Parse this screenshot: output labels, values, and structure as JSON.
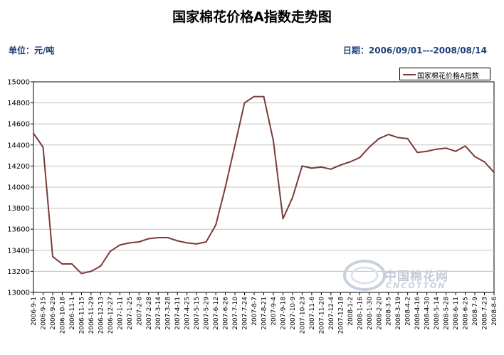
{
  "header": {
    "title": "国家棉花价格A指数走势图",
    "unit": "单位：元/吨",
    "date_range": "日期：2006/09/01---2008/08/14"
  },
  "legend": {
    "label": "国家棉花价格A指数"
  },
  "watermark": {
    "cn": "中国棉花网",
    "en": "CNCOTTON"
  },
  "colors": {
    "series": "#7b3a3a",
    "grid": "#c0c0c0",
    "axis": "#000000",
    "accent_text": "#1c3f7a"
  },
  "chart_data": {
    "type": "line",
    "ylim": [
      13000,
      15000
    ],
    "y_ticks": [
      13000,
      13200,
      13400,
      13600,
      13800,
      14000,
      14200,
      14400,
      14600,
      14800,
      15000
    ],
    "grid": true,
    "legend_position": "top-right",
    "categories": [
      "2006-9-1",
      "2006-9-15",
      "2006-9-29",
      "2006-10-18",
      "2006-11-1",
      "2006-11-15",
      "2006-11-29",
      "2006-12-13",
      "2006-12-27",
      "2007-1-11",
      "2007-1-25",
      "2007-2-8",
      "2007-2-28",
      "2007-3-14",
      "2007-3-28",
      "2007-4-11",
      "2007-4-25",
      "2007-5-15",
      "2007-5-29",
      "2007-6-12",
      "2007-6-26",
      "2007-7-10",
      "2007-7-24",
      "2007-8-7",
      "2007-8-21",
      "2007-9-4",
      "2007-9-18",
      "2007-10-9",
      "2007-10-23",
      "2007-11-6",
      "2007-11-20",
      "2007-12-4",
      "2007-12-18",
      "2008-1-2",
      "2008-1-16",
      "2008-1-30",
      "2008-2-20",
      "2008-3-5",
      "2008-3-19",
      "2008-4-2",
      "2008-4-16",
      "2008-4-30",
      "2008-5-14",
      "2008-5-28",
      "2008-6-11",
      "2008-6-25",
      "2008-7-9",
      "2008-7-23",
      "2008-8-6"
    ],
    "series": [
      {
        "name": "国家棉花价格A指数",
        "values": [
          14510,
          14380,
          13340,
          13270,
          13270,
          13180,
          13200,
          13250,
          13390,
          13450,
          13470,
          13480,
          13510,
          13520,
          13520,
          13490,
          13470,
          13460,
          13480,
          13640,
          14000,
          14400,
          14800,
          14860,
          14860,
          14440,
          13700,
          13900,
          14200,
          14180,
          14190,
          14170,
          14210,
          14240,
          14280,
          14380,
          14460,
          14500,
          14470,
          14460,
          14330,
          14340,
          14360,
          14370,
          14340,
          14390,
          14290,
          14240,
          14140
        ]
      }
    ]
  }
}
